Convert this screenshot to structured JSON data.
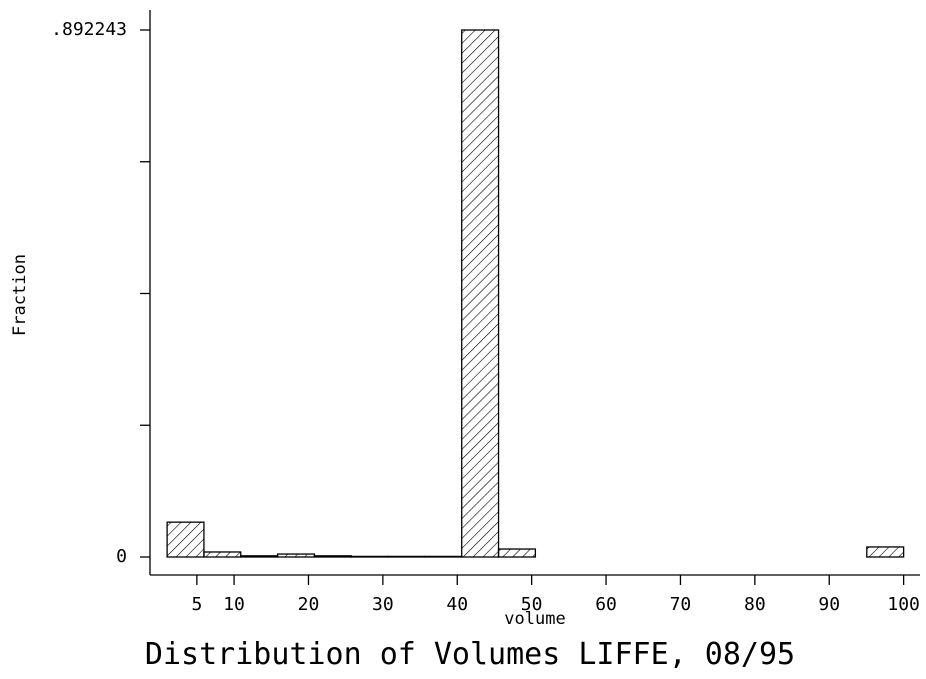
{
  "chart_data": {
    "type": "histogram",
    "title": "Distribution of Volumes LIFFE, 08/95",
    "x_label": "volume",
    "y_label": "Fraction",
    "bins": [
      1,
      5.95,
      10.9,
      15.85,
      20.8,
      25.75,
      30.7,
      35.65,
      40.6,
      45.55,
      50.5,
      55.45,
      60.4,
      65.35,
      70.3,
      75.25,
      80.2,
      85.15,
      90.1,
      95.05,
      100
    ],
    "values": [
      0.059,
      0.0085,
      0.002,
      0.005,
      0.002,
      0.001,
      0.001,
      0.001,
      0.892243,
      0.0135,
      0,
      0,
      0,
      0,
      0,
      0,
      0,
      0,
      0,
      0.017
    ],
    "xlim": [
      -1.3,
      102.2
    ],
    "xticks": [
      5,
      10,
      20,
      30,
      40,
      50,
      60,
      70,
      80,
      90,
      100
    ],
    "ylim": [
      0,
      0.892243
    ],
    "yticks": [
      0,
      {
        "value": 0.892243,
        "label": ".892243"
      }
    ],
    "yticks_unlabeled": [
      0.223061,
      0.446122,
      0.669182
    ],
    "hatch": true,
    "color": "#000000"
  }
}
